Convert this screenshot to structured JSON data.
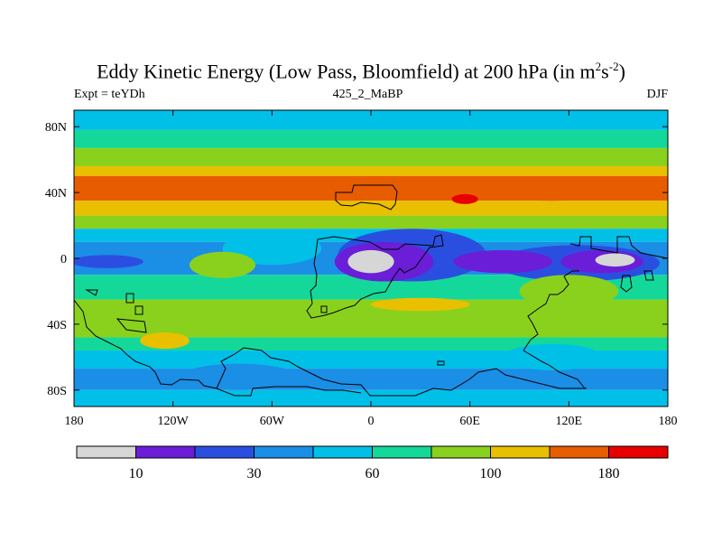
{
  "title": {
    "main": "Eddy Kinetic Energy (Low Pass, Bloomfield) at 200 hPa (in m",
    "sup1": "2",
    "mid": "s",
    "sup2": "-2",
    "end": ")"
  },
  "subtitle_left": "Expt = teYDh",
  "subtitle_center": "425_2_MaBP",
  "subtitle_right": "DJF",
  "colors": {
    "levels": [
      "#d6d6d6",
      "#6a1ed8",
      "#2a4fe0",
      "#1b8ee6",
      "#00c0e8",
      "#14d89a",
      "#8ad11e",
      "#e8c000",
      "#e85c00",
      "#e80000"
    ]
  },
  "chart_data": {
    "type": "heatmap",
    "title": "Eddy Kinetic Energy (Low Pass, Bloomfield) at 200 hPa (in m^2 s^-2)",
    "x_range": [
      -180,
      180
    ],
    "y_range": [
      -90,
      90
    ],
    "x_ticks": [
      {
        "value": -180,
        "label": "180"
      },
      {
        "value": -120,
        "label": "120W"
      },
      {
        "value": -60,
        "label": "60W"
      },
      {
        "value": 0,
        "label": "0"
      },
      {
        "value": 60,
        "label": "60E"
      },
      {
        "value": 120,
        "label": "120E"
      },
      {
        "value": 180,
        "label": "180"
      }
    ],
    "y_ticks": [
      {
        "value": 80,
        "label": "80N"
      },
      {
        "value": 40,
        "label": "40N"
      },
      {
        "value": 0,
        "label": "0"
      },
      {
        "value": -40,
        "label": "40S"
      },
      {
        "value": -80,
        "label": "80S"
      }
    ],
    "zonal_bands": [
      {
        "lat_from": 90,
        "lat_to": 78,
        "level": 4
      },
      {
        "lat_from": 78,
        "lat_to": 67,
        "level": 5
      },
      {
        "lat_from": 67,
        "lat_to": 56,
        "level": 6
      },
      {
        "lat_from": 56,
        "lat_to": 50,
        "level": 7
      },
      {
        "lat_from": 50,
        "lat_to": 35,
        "level": 8
      },
      {
        "lat_from": 35,
        "lat_to": 26,
        "level": 7
      },
      {
        "lat_from": 26,
        "lat_to": 18,
        "level": 6
      },
      {
        "lat_from": 18,
        "lat_to": 10,
        "level": 4
      },
      {
        "lat_from": 10,
        "lat_to": -10,
        "level": 3
      },
      {
        "lat_from": -10,
        "lat_to": -25,
        "level": 5
      },
      {
        "lat_from": -25,
        "lat_to": -48,
        "level": 6
      },
      {
        "lat_from": -48,
        "lat_to": -56,
        "level": 5
      },
      {
        "lat_from": -56,
        "lat_to": -67,
        "level": 4
      },
      {
        "lat_from": -67,
        "lat_to": -80,
        "level": 3
      },
      {
        "lat_from": -80,
        "lat_to": -90,
        "level": 4
      }
    ],
    "features": [
      {
        "lon": -15,
        "lat": 42,
        "rlon": 45,
        "rlat": 7,
        "level": 8
      },
      {
        "lon": 110,
        "lat": 42,
        "rlon": 50,
        "rlat": 7,
        "level": 8
      },
      {
        "lon": 57,
        "lat": 36,
        "rlon": 8,
        "rlat": 3,
        "level": 9
      },
      {
        "lon": -60,
        "lat": 6,
        "rlon": 30,
        "rlat": 10,
        "level": 4
      },
      {
        "lon": 25,
        "lat": 2,
        "rlon": 45,
        "rlat": 16,
        "level": 2
      },
      {
        "lon": 125,
        "lat": -3,
        "rlon": 50,
        "rlat": 11,
        "level": 2
      },
      {
        "lon": 80,
        "lat": -2,
        "rlon": 30,
        "rlat": 7,
        "level": 1
      },
      {
        "lon": 8,
        "lat": -2,
        "rlon": 30,
        "rlat": 12,
        "level": 1
      },
      {
        "lon": 140,
        "lat": -2,
        "rlon": 25,
        "rlat": 7,
        "level": 1
      },
      {
        "lon": 0,
        "lat": -2,
        "rlon": 14,
        "rlat": 7,
        "level": 0
      },
      {
        "lon": 148,
        "lat": -1,
        "rlon": 12,
        "rlat": 4,
        "level": 0
      },
      {
        "lon": -90,
        "lat": -4,
        "rlon": 20,
        "rlat": 8,
        "level": 6
      },
      {
        "lon": -160,
        "lat": -2,
        "rlon": 22,
        "rlat": 4,
        "level": 2
      },
      {
        "lon": 30,
        "lat": -28,
        "rlon": 30,
        "rlat": 4,
        "level": 7
      },
      {
        "lon": 120,
        "lat": -20,
        "rlon": 30,
        "rlat": 10,
        "level": 6
      },
      {
        "lon": -80,
        "lat": -72,
        "rlon": 35,
        "rlat": 8,
        "level": 3
      },
      {
        "lon": 110,
        "lat": -60,
        "rlon": 30,
        "rlat": 8,
        "level": 4
      },
      {
        "lon": -125,
        "lat": -50,
        "rlon": 15,
        "rlat": 5,
        "level": 7
      }
    ],
    "colorbar": {
      "colors": [
        "#d6d6d6",
        "#6a1ed8",
        "#2a4fe0",
        "#1b8ee6",
        "#00c0e8",
        "#14d89a",
        "#8ad11e",
        "#e8c000",
        "#e85c00",
        "#e80000"
      ],
      "labels": [
        {
          "after_box": 1,
          "text": "10"
        },
        {
          "after_box": 3,
          "text": "30"
        },
        {
          "after_box": 5,
          "text": "60"
        },
        {
          "after_box": 7,
          "text": "100"
        },
        {
          "after_box": 9,
          "text": "180"
        }
      ]
    }
  }
}
